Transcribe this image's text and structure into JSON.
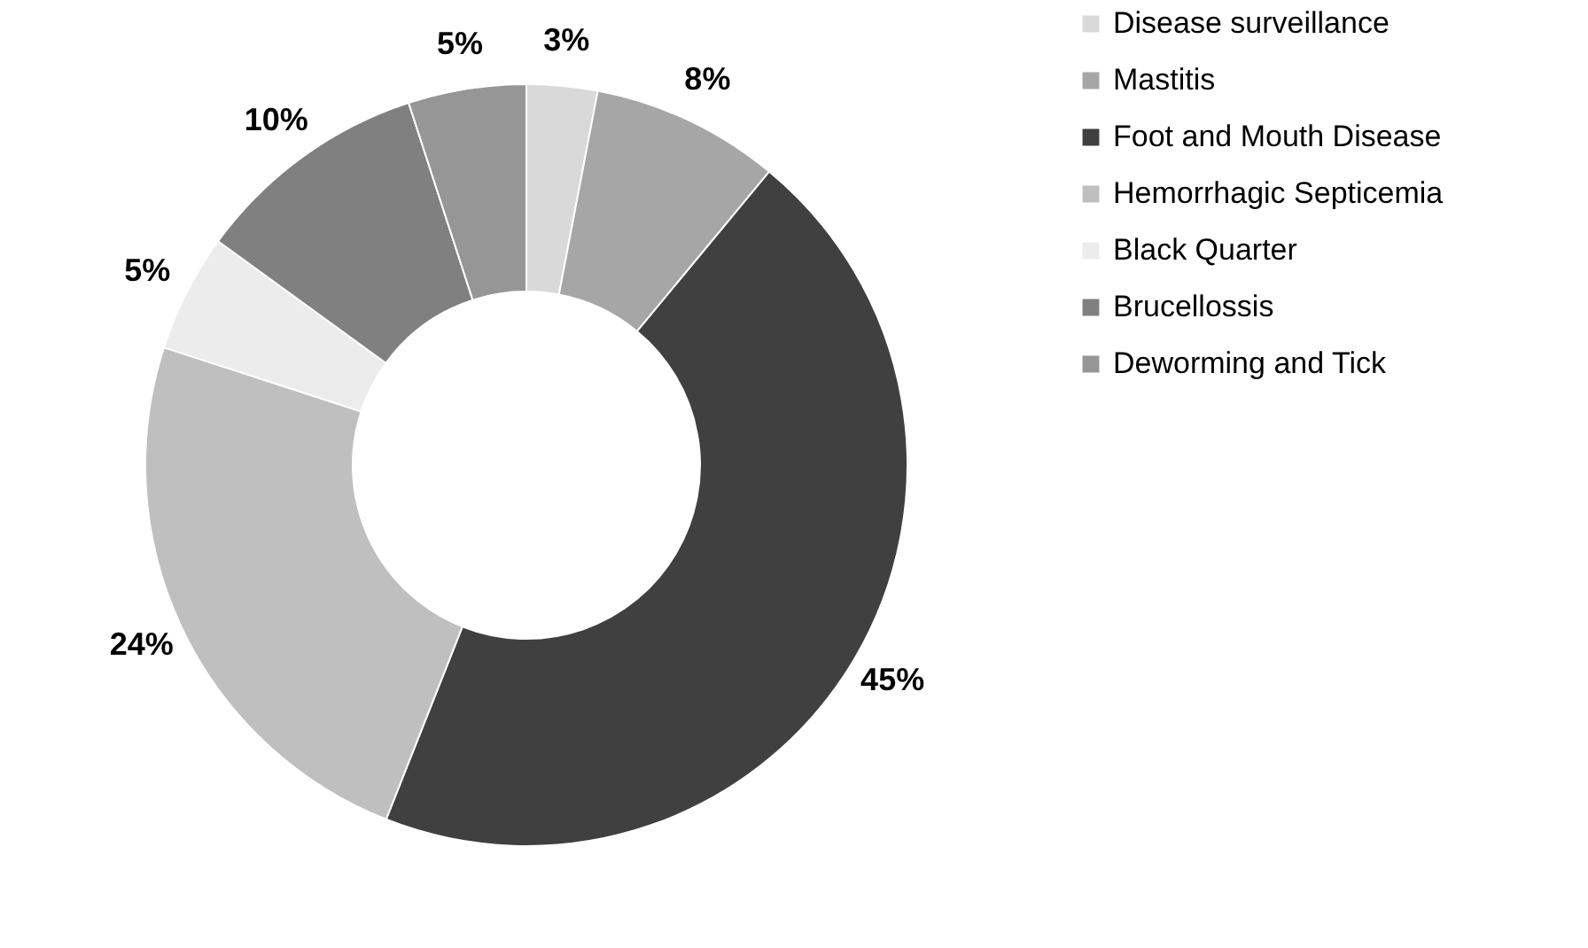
{
  "chart_data": {
    "type": "donut",
    "categories": [
      "Disease surveillance",
      "Mastitis",
      "Foot and Mouth Disease",
      "Hemorrhagic Septicemia",
      "Black Quarter",
      "Brucellossis",
      "Deworming and Tick"
    ],
    "values": [
      3,
      8,
      45,
      24,
      5,
      10,
      5
    ],
    "colors": [
      "#d9d9d9",
      "#a6a6a6",
      "#404040",
      "#bfbfbf",
      "#ececec",
      "#808080",
      "#969696"
    ],
    "value_labels": [
      "3%",
      "8%",
      "45%",
      "24%",
      "5%",
      "10%",
      "5%"
    ],
    "legend": "right"
  }
}
